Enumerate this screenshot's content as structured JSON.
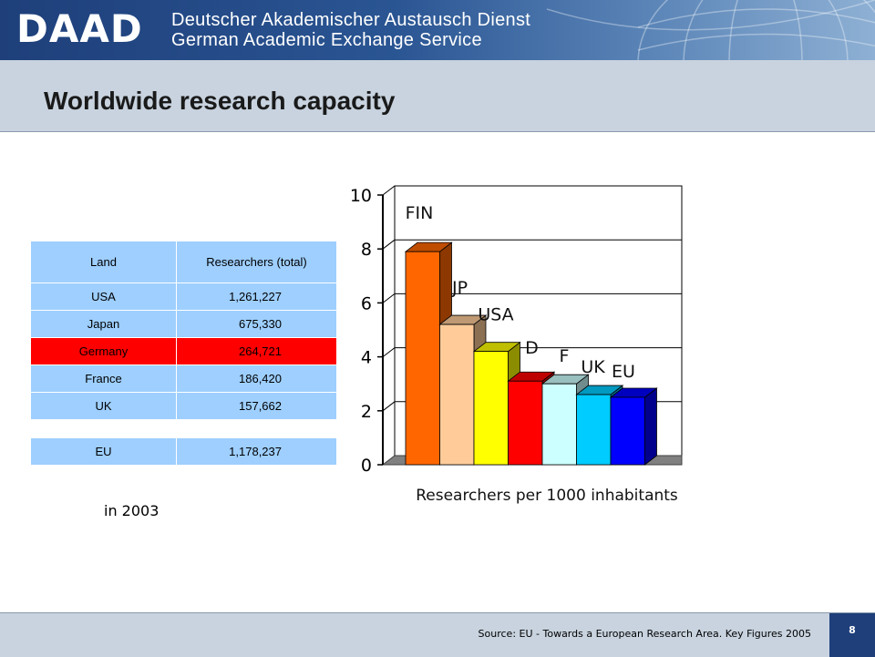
{
  "header": {
    "logo": "DAAD",
    "org_name_de": "Deutscher Akademischer Austausch Dienst",
    "org_name_en": "German Academic Exchange Service"
  },
  "title": "Worldwide research capacity",
  "table": {
    "headers": [
      "Land",
      "Researchers (total)"
    ],
    "rows": [
      {
        "land": "USA",
        "value": "1,261,227"
      },
      {
        "land": "Japan",
        "value": "675,330"
      },
      {
        "land": "Germany",
        "value": "264,721"
      },
      {
        "land": "France",
        "value": "186,420"
      },
      {
        "land": "UK",
        "value": "157,662"
      }
    ],
    "highlight_row": "Germany",
    "eu_row": {
      "land": "EU",
      "value": "1,178,237"
    }
  },
  "note": "in 2003",
  "chart_data": {
    "type": "bar",
    "categories": [
      "FIN",
      "JP",
      "USA",
      "D",
      "F",
      "UK",
      "EU"
    ],
    "values": [
      7.9,
      5.2,
      4.2,
      3.1,
      3.0,
      2.6,
      2.5
    ],
    "colors": [
      "#ff6600",
      "#ffcc99",
      "#ffff00",
      "#ff0000",
      "#ccffff",
      "#00ccff",
      "#0000ff"
    ],
    "xlabel": "Researchers per 1000 inhabitants",
    "ylabel": "",
    "ylim": [
      0,
      10
    ],
    "yticks": [
      0,
      2,
      4,
      6,
      8,
      10
    ],
    "grid": true,
    "style": "3d"
  },
  "footer": {
    "source": "Source: EU - Towards a European Research Area. Key Figures 2005",
    "page_number": "8"
  }
}
